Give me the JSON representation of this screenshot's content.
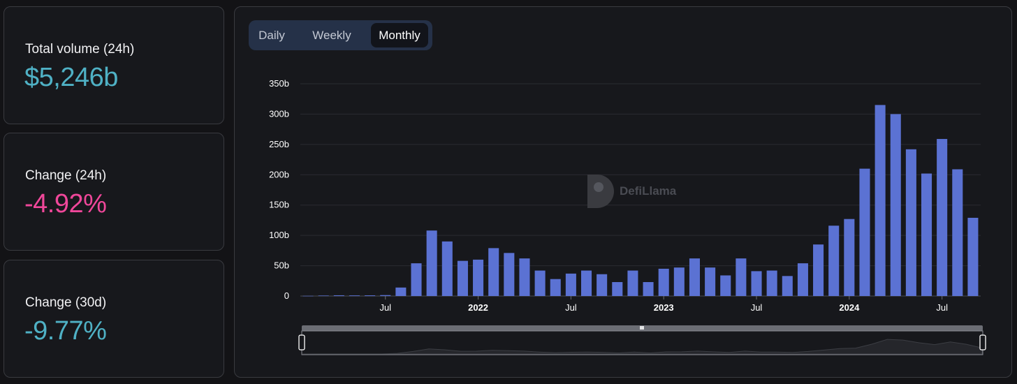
{
  "stats": [
    {
      "label": "Total volume (24h)",
      "value": "$5,246b",
      "color": "#4fb1c5"
    },
    {
      "label": "Change (24h)",
      "value": "-4.92%",
      "color": "#f0479a"
    },
    {
      "label": "Change (30d)",
      "value": "-9.77%",
      "color": "#4fb1c5"
    }
  ],
  "tabs": {
    "daily": "Daily",
    "weekly": "Weekly",
    "monthly": "Monthly",
    "active": "Monthly"
  },
  "watermark": "DefiLlama",
  "colors": {
    "bar": "#5b72d3",
    "grid": "#2a2b31",
    "background": "#17181c"
  },
  "chart_data": {
    "type": "bar",
    "title": "",
    "xlabel": "",
    "ylabel": "",
    "ylim": [
      0,
      350
    ],
    "unit": "b",
    "y_ticks": [
      "0",
      "50b",
      "100b",
      "150b",
      "200b",
      "250b",
      "300b",
      "350b"
    ],
    "x_tick_labels": [
      {
        "label": "Jul",
        "index": 5,
        "bold": false
      },
      {
        "label": "2022",
        "index": 11,
        "bold": true
      },
      {
        "label": "Jul",
        "index": 17,
        "bold": false
      },
      {
        "label": "2023",
        "index": 23,
        "bold": true
      },
      {
        "label": "Jul",
        "index": 29,
        "bold": false
      },
      {
        "label": "2024",
        "index": 35,
        "bold": true
      },
      {
        "label": "Jul",
        "index": 41,
        "bold": false
      }
    ],
    "categories": [
      "2021-02",
      "2021-03",
      "2021-04",
      "2021-05",
      "2021-06",
      "2021-07",
      "2021-08",
      "2021-09",
      "2021-10",
      "2021-11",
      "2021-12",
      "2022-01",
      "2022-02",
      "2022-03",
      "2022-04",
      "2022-05",
      "2022-06",
      "2022-07",
      "2022-08",
      "2022-09",
      "2022-10",
      "2022-11",
      "2022-12",
      "2023-01",
      "2023-02",
      "2023-03",
      "2023-04",
      "2023-05",
      "2023-06",
      "2023-07",
      "2023-08",
      "2023-09",
      "2023-10",
      "2023-11",
      "2023-12",
      "2024-01",
      "2024-02",
      "2024-03",
      "2024-04",
      "2024-05",
      "2024-06",
      "2024-07",
      "2024-08",
      "2024-09"
    ],
    "values": [
      0.3,
      0.8,
      1.2,
      1.0,
      1.1,
      1.5,
      14,
      54,
      108,
      90,
      58,
      60,
      79,
      71,
      62,
      42,
      28,
      37,
      42,
      36,
      23,
      42,
      23,
      45,
      47,
      62,
      47,
      34,
      62,
      41,
      42,
      33,
      54,
      85,
      116,
      127,
      210,
      315,
      300,
      242,
      202,
      259,
      209,
      129
    ]
  }
}
